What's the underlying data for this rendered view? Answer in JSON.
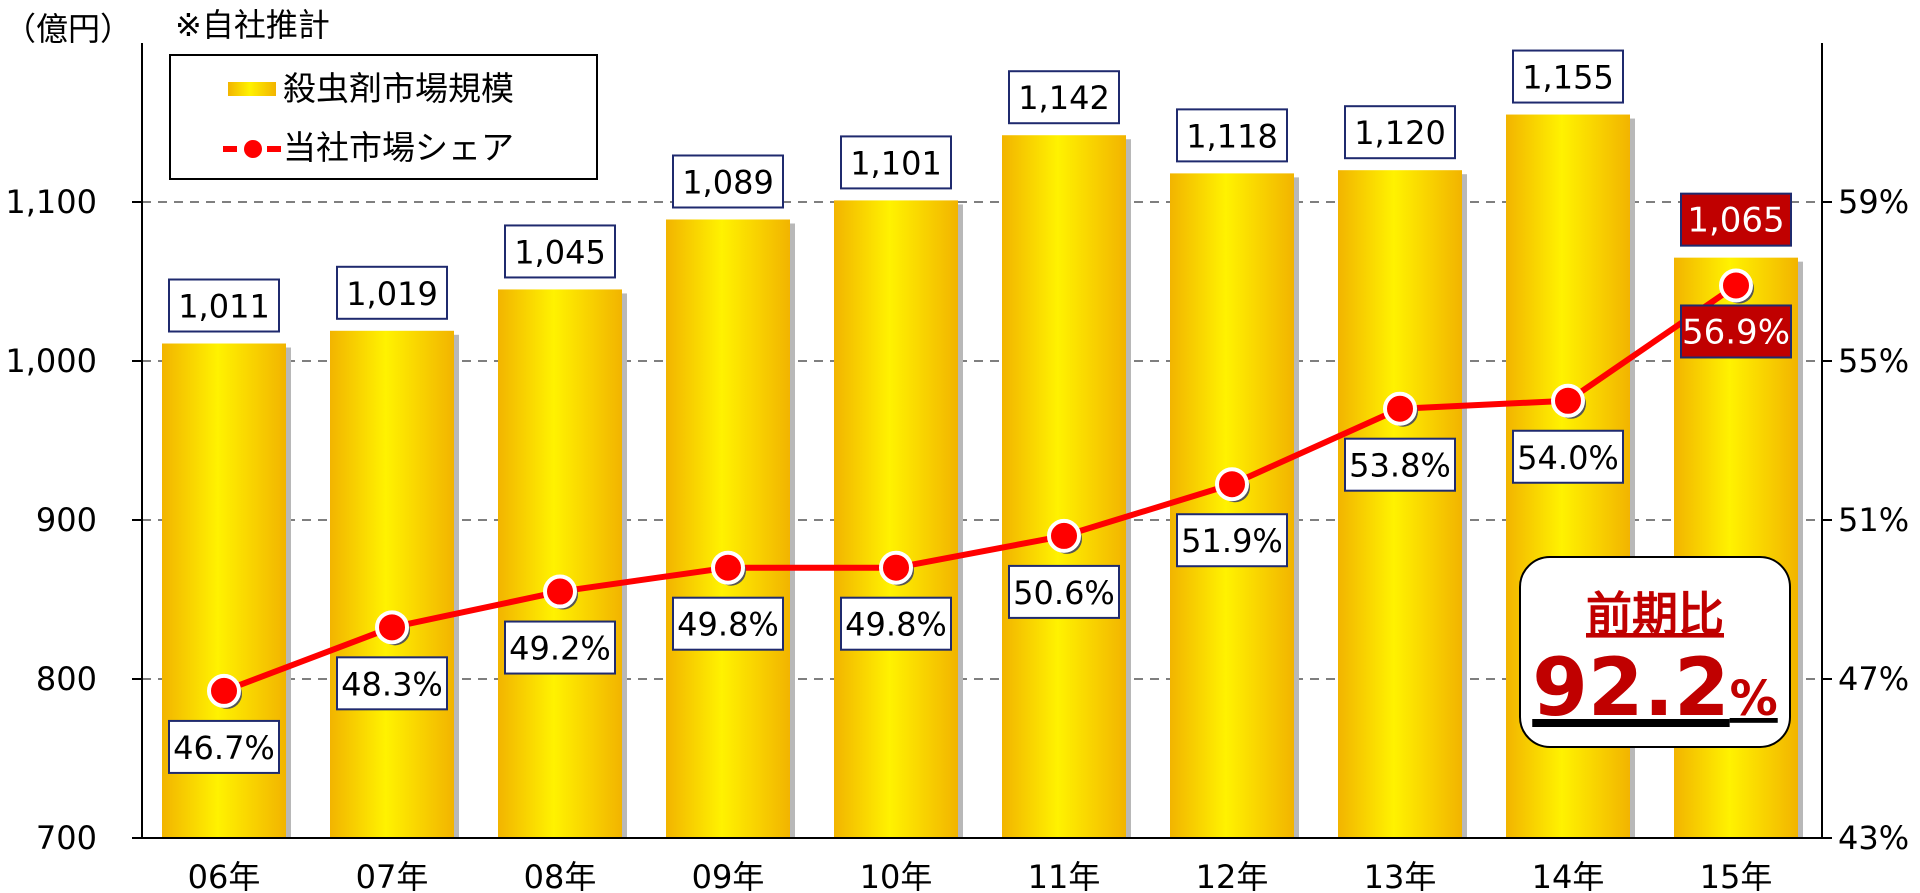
{
  "chart_data": {
    "type": "bar",
    "categories": [
      "06年",
      "07年",
      "08年",
      "09年",
      "10年",
      "11年",
      "12年",
      "13年",
      "14年",
      "15年"
    ],
    "series": [
      {
        "name": "殺虫剤市場規模",
        "type": "bar",
        "axis": "left",
        "values": [
          1011,
          1019,
          1045,
          1089,
          1101,
          1142,
          1118,
          1120,
          1155,
          1065
        ],
        "labels": [
          "1,011",
          "1,019",
          "1,045",
          "1,089",
          "1,101",
          "1,142",
          "1,118",
          "1,120",
          "1,155",
          "1,065"
        ],
        "color": "#ffd700"
      },
      {
        "name": "当社市場シェア",
        "type": "line",
        "axis": "right",
        "values": [
          46.7,
          48.3,
          49.2,
          49.8,
          49.8,
          50.6,
          51.9,
          53.8,
          54.0,
          56.9
        ],
        "labels": [
          "46.7%",
          "48.3%",
          "49.2%",
          "49.8%",
          "49.8%",
          "50.6%",
          "51.9%",
          "53.8%",
          "54.0%",
          "56.9%"
        ],
        "color": "#ff0000"
      }
    ],
    "highlight_index": 9,
    "highlight_color": "#c00000",
    "y_left": {
      "unit_label": "（億円）",
      "range": [
        700,
        1200
      ],
      "ticks": [
        700,
        800,
        900,
        1000,
        1100
      ],
      "tick_labels": [
        "700",
        "800",
        "900",
        "1,000",
        "1,100"
      ]
    },
    "y_right": {
      "range": [
        43,
        63
      ],
      "ticks": [
        43,
        47,
        51,
        55,
        59
      ],
      "tick_labels": [
        "43%",
        "47%",
        "51%",
        "55%",
        "59%"
      ]
    },
    "note": "※自社推計",
    "grid": "dashed-horizontal",
    "legend_position": "top-left",
    "callout": {
      "title": "前期比",
      "value": "92.2",
      "unit": "%"
    }
  }
}
